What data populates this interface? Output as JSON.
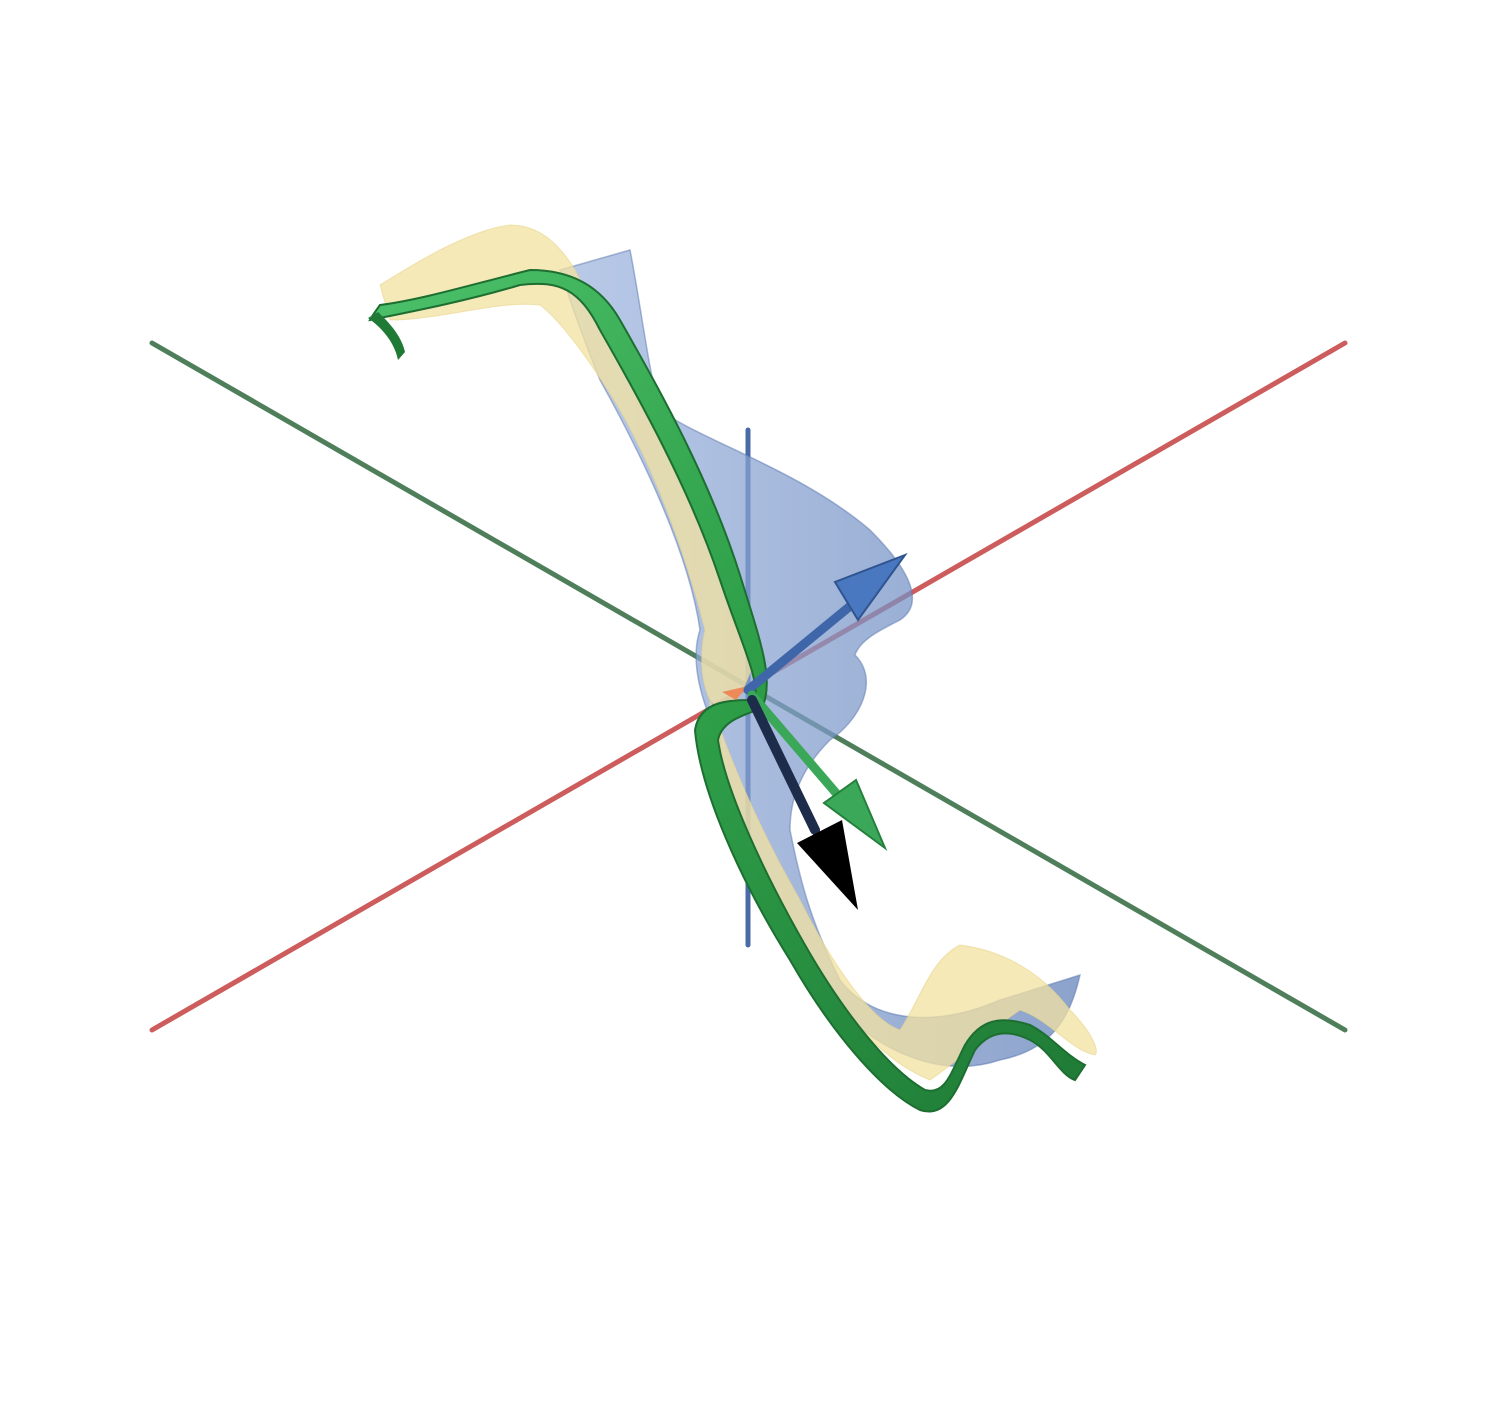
{
  "figure": {
    "kind": "3d-space-curve-frenet-frame",
    "background": "#ffffff",
    "axes": [
      {
        "name": "x-axis",
        "color": "#cd5c5c"
      },
      {
        "name": "y-axis",
        "color": "#4f7f5a"
      },
      {
        "name": "z-axis",
        "color": "#4a6aa8"
      }
    ],
    "curve": {
      "name": "space-curve-tube",
      "color": "#2e9e48"
    },
    "surfaces": [
      {
        "name": "osculating-surface",
        "color": "#f3e2a0"
      },
      {
        "name": "normal-surface",
        "color": "#6f8fc8"
      }
    ],
    "vectors": [
      {
        "name": "binormal-vector",
        "color": "#4a78c0"
      },
      {
        "name": "tangent-vector",
        "color": "#3aa858"
      },
      {
        "name": "normal-vector",
        "color": "#000000"
      }
    ],
    "origin_marker_color": "#ee8a5a"
  }
}
